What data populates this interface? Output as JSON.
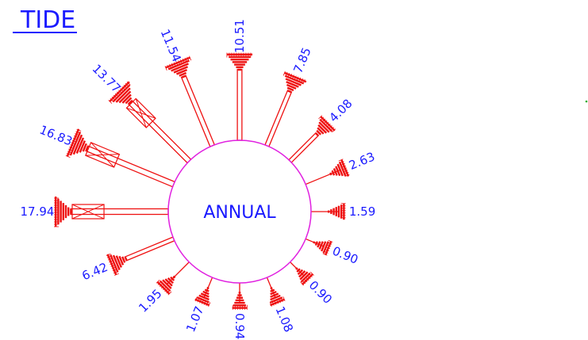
{
  "title": "TIDE",
  "center_label": "ANNUAL",
  "colors": {
    "text": "#1a1aff",
    "rose": "#ee1111",
    "circle": "#e020e0",
    "marker": "#22aa22"
  },
  "chart_data": {
    "type": "rose",
    "title": "TIDE",
    "center_label": "ANNUAL",
    "directions_deg": [
      0,
      22.5,
      45,
      67.5,
      90,
      112.5,
      135,
      157.5,
      180,
      202.5,
      225,
      247.5,
      270,
      292.5,
      315,
      337.5
    ],
    "values": [
      10.51,
      7.85,
      4.08,
      2.63,
      1.59,
      0.9,
      0.9,
      1.08,
      0.94,
      1.07,
      1.95,
      6.42,
      17.94,
      16.83,
      13.77,
      11.54
    ],
    "value_labels": [
      "10.51",
      "7.85",
      "4.08",
      "2.63",
      "1.59",
      "0.90",
      "0.90",
      "1.08",
      "0.94",
      "1.07",
      "1.95",
      "6.42",
      "17.94",
      "16.83",
      "13.77",
      "11.54"
    ]
  }
}
